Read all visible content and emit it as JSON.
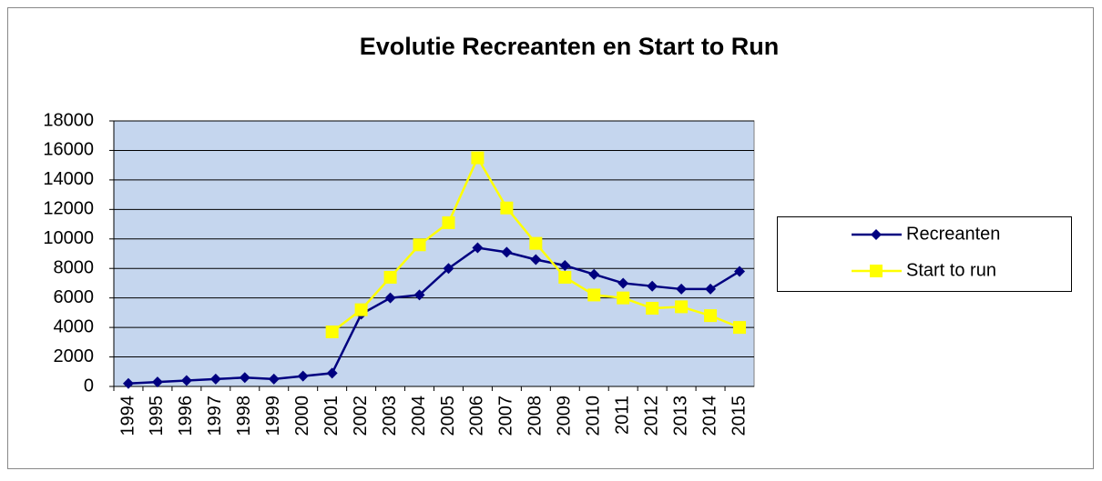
{
  "chart_data": {
    "type": "line",
    "title": "Evolutie Recreanten en Start to Run",
    "categories": [
      "1994",
      "1995",
      "1996",
      "1997",
      "1998",
      "1999",
      "2000",
      "2001",
      "2002",
      "2003",
      "2004",
      "2005",
      "2006",
      "2007",
      "2008",
      "2009",
      "2010",
      "2011",
      "2012",
      "2013",
      "2014",
      "2015"
    ],
    "series": [
      {
        "name": "Recreanten",
        "color": "#000080",
        "marker": "diamond",
        "values": [
          200,
          300,
          400,
          500,
          600,
          500,
          700,
          900,
          4900,
          6000,
          6200,
          8000,
          9400,
          9100,
          8600,
          8200,
          7600,
          7000,
          6800,
          6600,
          6600,
          7800
        ]
      },
      {
        "name": "Start to run",
        "color": "#ffff00",
        "marker": "square",
        "values": [
          null,
          null,
          null,
          null,
          null,
          null,
          null,
          3700,
          5200,
          7400,
          9600,
          11100,
          15500,
          12100,
          9700,
          7400,
          6200,
          6000,
          5300,
          5400,
          4800,
          4000
        ]
      }
    ],
    "ylim": [
      0,
      18000
    ],
    "yticks": [
      0,
      2000,
      4000,
      6000,
      8000,
      10000,
      12000,
      14000,
      16000,
      18000
    ],
    "grid": true,
    "plot_background": "#c5d6ee",
    "legend": "right"
  }
}
